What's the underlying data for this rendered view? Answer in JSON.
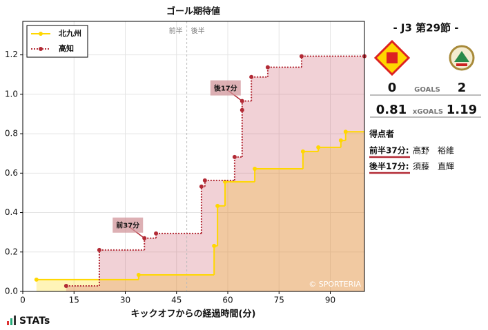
{
  "chart_data": {
    "type": "step",
    "title": "ゴール期待値",
    "x_label": "キックオフからの経過時間(分)",
    "xlim": [
      0,
      100
    ],
    "xticks": [
      0,
      15,
      30,
      45,
      60,
      75,
      90
    ],
    "ylim": [
      0,
      1.37
    ],
    "yticks": [
      {
        "value": 0,
        "label": "0.0"
      },
      {
        "value": 0.2,
        "label": "0.2"
      },
      {
        "value": 0.4,
        "label": "0.4"
      },
      {
        "value": 0.6,
        "label": "0.6"
      },
      {
        "value": 0.8,
        "label": "0.8"
      },
      {
        "value": 1.0,
        "label": "1.0"
      },
      {
        "value": 1.2,
        "label": "1.2"
      }
    ],
    "legend": "upper left",
    "halftime": 48,
    "half_labels": [
      "前半",
      "後半"
    ],
    "series": [
      {
        "name": "北九州",
        "color": "#ffd700",
        "fill": "rgba(255,215,0,0.28)",
        "x": [
          4,
          33.9,
          56,
          57,
          59.2,
          67.9,
          82,
          86.5,
          93.1,
          94.5
        ],
        "values": [
          0.06,
          0.084,
          0.231,
          0.434,
          0.556,
          0.622,
          0.71,
          0.731,
          0.766,
          0.81
        ]
      },
      {
        "name": "高知",
        "color": "#b22a35",
        "fill": "rgba(200,70,90,0.25)",
        "x": [
          12.7,
          22.4,
          35.6,
          39,
          52.3,
          53.3,
          62,
          64.2,
          64.2,
          66.9,
          71.7,
          81.6,
          100
        ],
        "values": [
          0.028,
          0.21,
          0.27,
          0.294,
          0.532,
          0.563,
          0.682,
          0.92,
          0.966,
          1.088,
          1.137,
          1.193,
          1.193
        ]
      }
    ],
    "annotations": [
      {
        "text": "前37分",
        "x": 35.6,
        "y": 0.27
      },
      {
        "text": "後17分",
        "x": 64.2,
        "y": 0.966
      }
    ],
    "watermark": "© SPORTERIA"
  },
  "match": {
    "round": "-  J3 第29節  -",
    "home_goals": "0",
    "goals_label": "GOALS",
    "away_goals": "2",
    "home_xg": "0.81",
    "xg_label": "xGOALS",
    "away_xg": "1.19",
    "scorers_title": "得点者",
    "scorers": [
      [
        "前半37分:",
        "高野　裕維"
      ],
      [
        "後半17分:",
        "須藤　直輝"
      ]
    ]
  },
  "brand": "STATs"
}
